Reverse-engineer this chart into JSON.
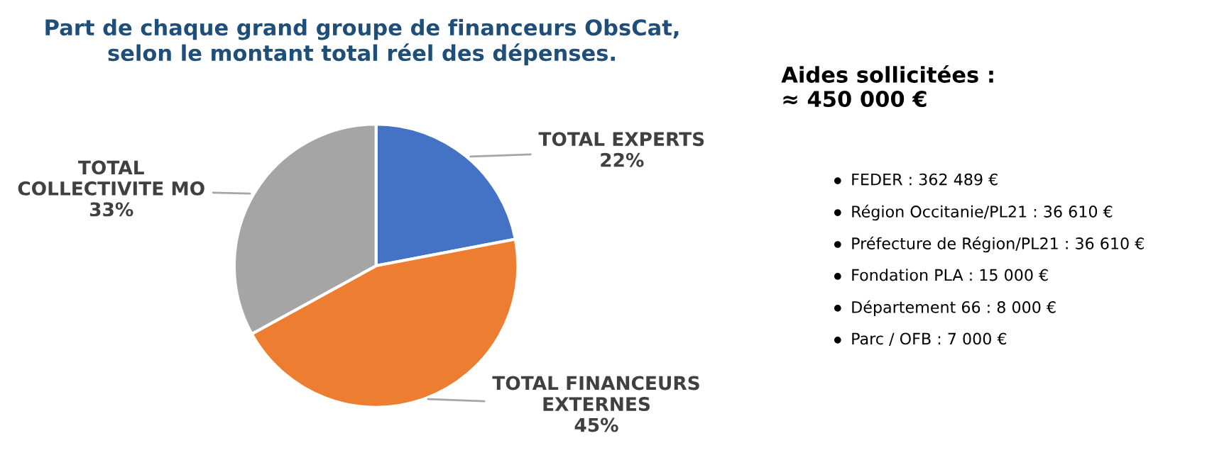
{
  "chart_data": [
    {
      "type": "pie",
      "title": "Part de chaque grand groupe de financeurs ObsCat,\nselon le montant total réel des dépenses.",
      "categories": [
        "TOTAL EXPERTS",
        "TOTAL FINANCEURS\nEXTERNES",
        "TOTAL\nCOLLECTIVITE MO"
      ],
      "values": [
        22,
        45,
        33
      ],
      "colors": [
        "#4472c4",
        "#ed7d31",
        "#a5a5a5"
      ],
      "value_labels": [
        "22%",
        "45%",
        "33%"
      ],
      "legend": false
    },
    {
      "type": "other",
      "title": "Aides sollicitées :\n≈ 450 000 €",
      "annotations": [
        "FEDER : 362 489 €",
        "Région Occitanie/PL21 : 36 610 €",
        "Préfecture de Région/PL21 : 36 610 €",
        "Fondation PLA : 15 000 €",
        "Département 66 : 8 000 €",
        "Parc / OFB : 7 000 €"
      ]
    }
  ]
}
